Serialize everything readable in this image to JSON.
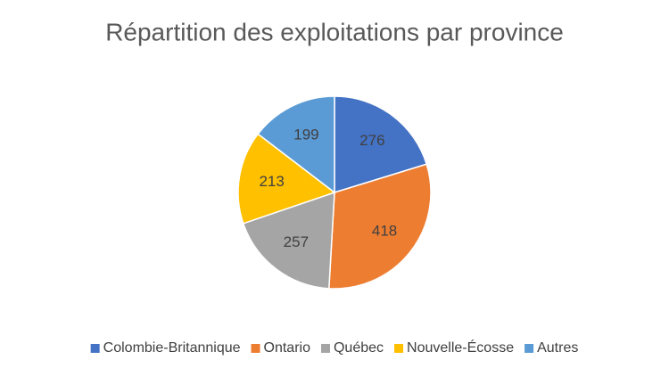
{
  "chart_data": {
    "type": "pie",
    "title": "Répartition des exploitations par province",
    "categories": [
      "Colombie-Britannique",
      "Ontario",
      "Québec",
      "Nouvelle-Écosse",
      "Autres"
    ],
    "values": [
      276,
      418,
      257,
      213,
      199
    ],
    "colors": [
      "#4472c4",
      "#ed7d31",
      "#a5a5a5",
      "#ffc000",
      "#5b9bd5"
    ],
    "legend": "bottom"
  }
}
